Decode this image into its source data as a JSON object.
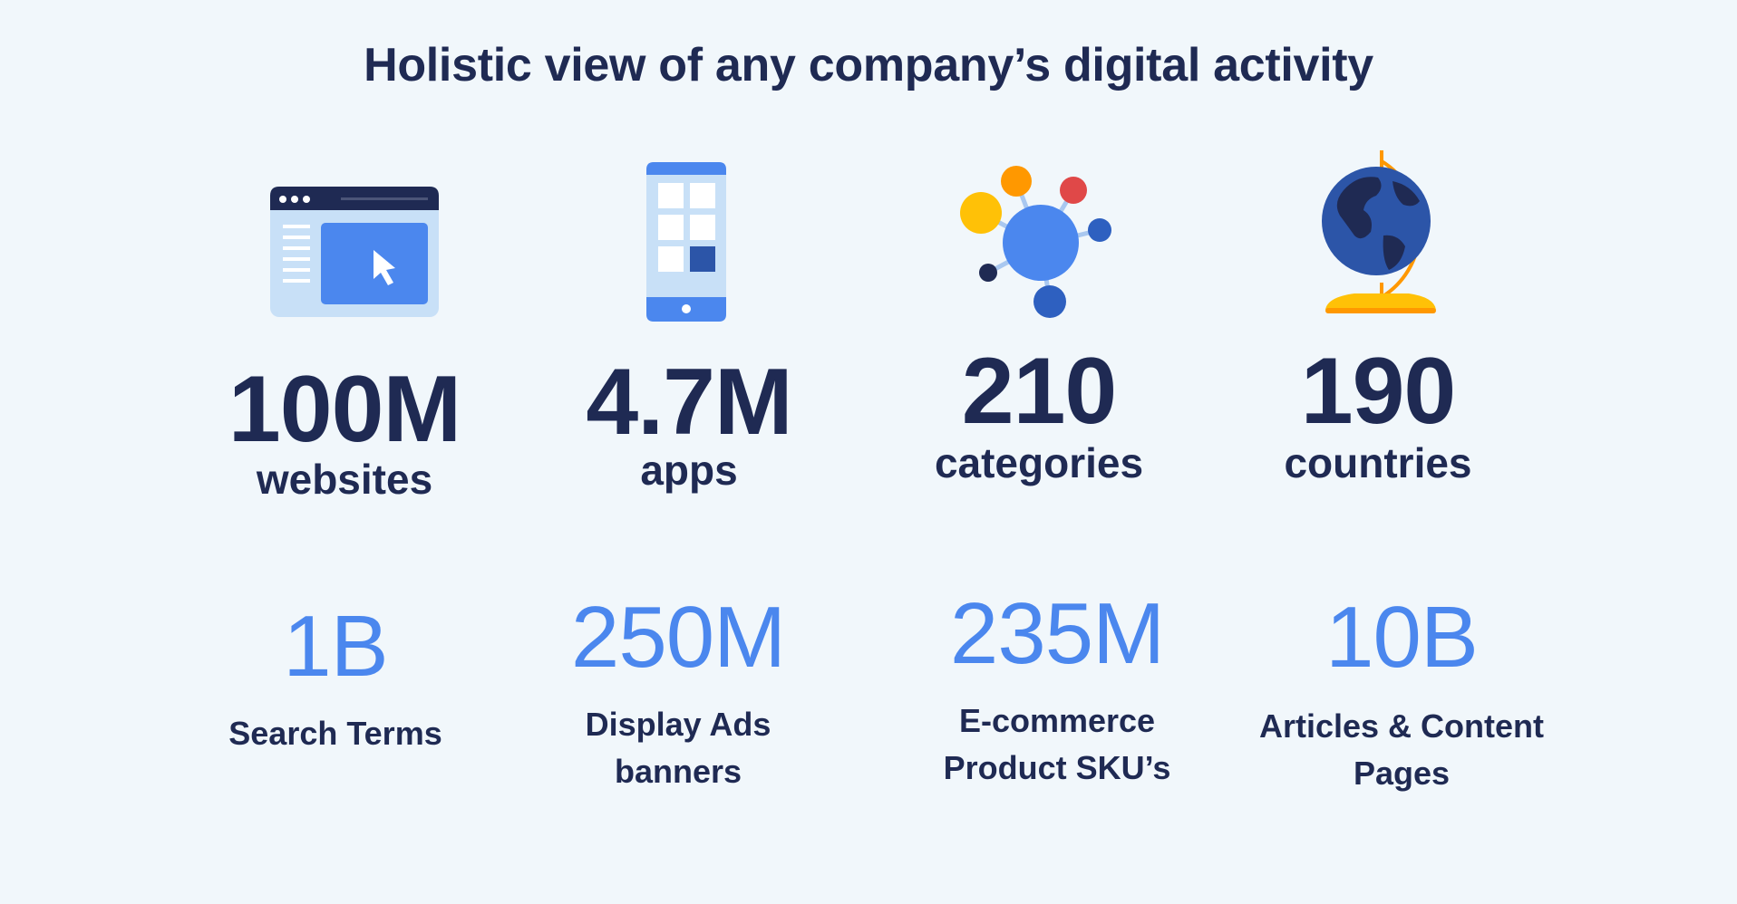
{
  "title": "Holistic view of any company’s digital activity",
  "top_stats": [
    {
      "value": "100M",
      "label": "websites",
      "icon": "browser-window-icon"
    },
    {
      "value": "4.7M",
      "label": "apps",
      "icon": "mobile-phone-icon"
    },
    {
      "value": "210",
      "label": "categories",
      "icon": "category-network-icon"
    },
    {
      "value": "190",
      "label": "countries",
      "icon": "globe-icon"
    }
  ],
  "bottom_stats": [
    {
      "value": "1B",
      "label_line1": "Search Terms",
      "label_line2": ""
    },
    {
      "value": "250M",
      "label_line1": "Display Ads",
      "label_line2": "banners"
    },
    {
      "value": "235M",
      "label_line1": "E-commerce",
      "label_line2": "Product SKU’s"
    },
    {
      "value": "10B",
      "label_line1": "Articles & Content",
      "label_line2": "Pages"
    }
  ],
  "colors": {
    "background": "#f1f7fb",
    "navy": "#1f2a53",
    "accent_blue": "#4b87ee",
    "light_blue": "#c8e0f7",
    "yellow": "#ffc107",
    "orange": "#ff9800",
    "red": "#e04848"
  }
}
